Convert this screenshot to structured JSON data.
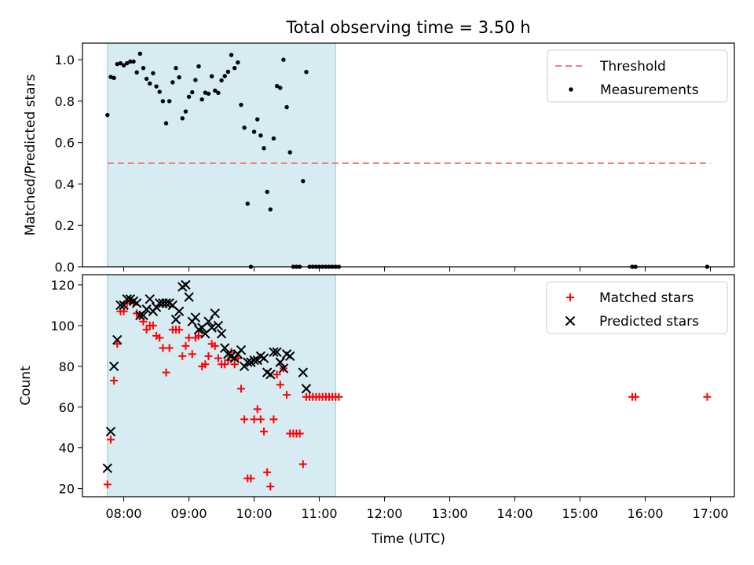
{
  "chart_data": {
    "title": "Total observing time = 3.50 h",
    "shaded_span": [
      "07:45",
      "11:15"
    ],
    "xlabel": "Time (UTC)",
    "xlim": [
      "07:22",
      "17:22"
    ],
    "x_ticks": [
      "08:00",
      "09:00",
      "10:00",
      "11:00",
      "12:00",
      "13:00",
      "14:00",
      "15:00",
      "16:00",
      "17:00"
    ],
    "panels": [
      {
        "type": "scatter",
        "ylabel": "Matched/Predicted stars",
        "ylim": [
          0,
          1.08
        ],
        "y_ticks": [
          0.0,
          0.2,
          0.4,
          0.6,
          0.8,
          1.0
        ],
        "legend": "top-right",
        "series": [
          {
            "name": "Threshold",
            "kind": "hline",
            "color": "#f08080",
            "x": [
              "07:45",
              "17:00"
            ],
            "y": 0.5
          },
          {
            "name": "Measurements",
            "kind": "dot",
            "color": "#000000",
            "points": [
              [
                "07:45",
                0.733
              ],
              [
                "07:48",
                0.917
              ],
              [
                "07:51",
                0.912
              ],
              [
                "07:54",
                0.979
              ],
              [
                "07:57",
                0.983
              ],
              [
                "08:00",
                0.973
              ],
              [
                "08:03",
                0.983
              ],
              [
                "08:06",
                0.991
              ],
              [
                "08:09",
                0.991
              ],
              [
                "08:12",
                0.939
              ],
              [
                "08:15",
                1.029
              ],
              [
                "08:18",
                0.96
              ],
              [
                "08:21",
                0.908
              ],
              [
                "08:24",
                0.885
              ],
              [
                "08:27",
                0.935
              ],
              [
                "08:30",
                0.871
              ],
              [
                "08:33",
                0.845
              ],
              [
                "08:36",
                0.8
              ],
              [
                "08:39",
                0.693
              ],
              [
                "08:42",
                0.8
              ],
              [
                "08:45",
                0.891
              ],
              [
                "08:48",
                0.96
              ],
              [
                "08:51",
                0.915
              ],
              [
                "08:54",
                0.717
              ],
              [
                "08:57",
                0.75
              ],
              [
                "09:00",
                0.821
              ],
              [
                "09:03",
                0.843
              ],
              [
                "09:06",
                0.902
              ],
              [
                "09:09",
                0.968
              ],
              [
                "09:12",
                0.808
              ],
              [
                "09:15",
                0.841
              ],
              [
                "09:18",
                0.836
              ],
              [
                "09:21",
                0.92
              ],
              [
                "09:24",
                0.851
              ],
              [
                "09:27",
                0.84
              ],
              [
                "09:30",
                0.9
              ],
              [
                "09:33",
                0.921
              ],
              [
                "09:36",
                0.942
              ],
              [
                "09:39",
                1.023
              ],
              [
                "09:42",
                0.96
              ],
              [
                "09:45",
                0.987
              ],
              [
                "09:48",
                0.782
              ],
              [
                "09:51",
                0.672
              ],
              [
                "09:54",
                0.305
              ],
              [
                "09:57",
                0.0
              ],
              [
                "10:00",
                0.652
              ],
              [
                "10:03",
                0.712
              ],
              [
                "10:06",
                0.634
              ],
              [
                "10:09",
                0.573
              ],
              [
                "10:12",
                0.362
              ],
              [
                "10:15",
                0.277
              ],
              [
                "10:18",
                0.62
              ],
              [
                "10:21",
                0.873
              ],
              [
                "10:24",
                0.864
              ],
              [
                "10:27",
                1.0
              ],
              [
                "10:30",
                0.771
              ],
              [
                "10:33",
                0.553
              ],
              [
                "10:36",
                0.0
              ],
              [
                "10:39",
                0.0
              ],
              [
                "10:42",
                0.0
              ],
              [
                "10:45",
                0.414
              ],
              [
                "10:48",
                0.941
              ],
              [
                "10:51",
                0.0
              ],
              [
                "10:54",
                0.0
              ],
              [
                "10:57",
                0.0
              ],
              [
                "11:00",
                0.0
              ],
              [
                "11:03",
                0.0
              ],
              [
                "11:06",
                0.0
              ],
              [
                "11:09",
                0.0
              ],
              [
                "11:12",
                0.0
              ],
              [
                "11:15",
                0.0
              ],
              [
                "11:18",
                0.0
              ],
              [
                "15:48",
                0.0
              ],
              [
                "15:51",
                0.0
              ],
              [
                "16:57",
                0.0
              ]
            ]
          }
        ]
      },
      {
        "type": "scatter",
        "ylabel": "Count",
        "ylim": [
          16,
          125
        ],
        "y_ticks": [
          20,
          40,
          60,
          80,
          100,
          120
        ],
        "legend": "top-right",
        "series": [
          {
            "name": "Matched stars",
            "kind": "plus",
            "color": "#ff0000",
            "points": [
              [
                "07:45",
                22
              ],
              [
                "07:48",
                44
              ],
              [
                "07:51",
                73
              ],
              [
                "07:54",
                91
              ],
              [
                "07:57",
                107
              ],
              [
                "08:00",
                107
              ],
              [
                "08:03",
                111
              ],
              [
                "08:06",
                112
              ],
              [
                "08:09",
                111
              ],
              [
                "08:12",
                106
              ],
              [
                "08:15",
                105
              ],
              [
                "08:18",
                102
              ],
              [
                "08:21",
                98
              ],
              [
                "08:24",
                100
              ],
              [
                "08:27",
                100
              ],
              [
                "08:30",
                95
              ],
              [
                "08:33",
                94
              ],
              [
                "08:36",
                89
              ],
              [
                "08:39",
                77
              ],
              [
                "08:42",
                89
              ],
              [
                "08:45",
                98
              ],
              [
                "08:48",
                98
              ],
              [
                "08:51",
                98
              ],
              [
                "08:54",
                85
              ],
              [
                "08:57",
                90
              ],
              [
                "09:00",
                94
              ],
              [
                "09:03",
                86
              ],
              [
                "09:06",
                94
              ],
              [
                "09:09",
                95
              ],
              [
                "09:12",
                80
              ],
              [
                "09:15",
                81
              ],
              [
                "09:18",
                85
              ],
              [
                "09:21",
                91
              ],
              [
                "09:24",
                90
              ],
              [
                "09:27",
                84
              ],
              [
                "09:30",
                81
              ],
              [
                "09:33",
                81
              ],
              [
                "09:36",
                83
              ],
              [
                "09:39",
                87
              ],
              [
                "09:42",
                81
              ],
              [
                "09:45",
                84
              ],
              [
                "09:48",
                69
              ],
              [
                "09:51",
                54
              ],
              [
                "09:54",
                25
              ],
              [
                "09:57",
                25
              ],
              [
                "10:00",
                54
              ],
              [
                "10:03",
                59
              ],
              [
                "10:06",
                54
              ],
              [
                "10:09",
                48
              ],
              [
                "10:12",
                28
              ],
              [
                "10:15",
                21
              ],
              [
                "10:18",
                54
              ],
              [
                "10:21",
                76
              ],
              [
                "10:24",
                71
              ],
              [
                "10:27",
                79
              ],
              [
                "10:30",
                66
              ],
              [
                "10:33",
                47
              ],
              [
                "10:36",
                47
              ],
              [
                "10:39",
                47
              ],
              [
                "10:42",
                47
              ],
              [
                "10:45",
                32
              ],
              [
                "10:48",
                65
              ],
              [
                "10:51",
                65
              ],
              [
                "10:54",
                65
              ],
              [
                "10:57",
                65
              ],
              [
                "11:00",
                65
              ],
              [
                "11:03",
                65
              ],
              [
                "11:06",
                65
              ],
              [
                "11:09",
                65
              ],
              [
                "11:12",
                65
              ],
              [
                "11:15",
                65
              ],
              [
                "11:18",
                65
              ],
              [
                "15:48",
                65
              ],
              [
                "15:51",
                65
              ],
              [
                "16:57",
                65
              ]
            ]
          },
          {
            "name": "Predicted stars",
            "kind": "x",
            "color": "#000000",
            "points": [
              [
                "07:45",
                30
              ],
              [
                "07:48",
                48
              ],
              [
                "07:51",
                80
              ],
              [
                "07:54",
                93
              ],
              [
                "07:57",
                110
              ],
              [
                "08:00",
                110
              ],
              [
                "08:03",
                113
              ],
              [
                "08:06",
                113
              ],
              [
                "08:09",
                112
              ],
              [
                "08:12",
                111
              ],
              [
                "08:15",
                105
              ],
              [
                "08:18",
                105
              ],
              [
                "08:21",
                108
              ],
              [
                "08:24",
                113
              ],
              [
                "08:27",
                107
              ],
              [
                "08:30",
                109
              ],
              [
                "08:33",
                111
              ],
              [
                "08:36",
                111
              ],
              [
                "08:39",
                111
              ],
              [
                "08:42",
                111
              ],
              [
                "08:45",
                110
              ],
              [
                "08:48",
                103
              ],
              [
                "08:51",
                107
              ],
              [
                "08:54",
                119
              ],
              [
                "08:57",
                120
              ],
              [
                "09:00",
                114
              ],
              [
                "09:03",
                102
              ],
              [
                "09:06",
                104
              ],
              [
                "09:09",
                98
              ],
              [
                "09:12",
                99
              ],
              [
                "09:15",
                96
              ],
              [
                "09:18",
                102
              ],
              [
                "09:21",
                99
              ],
              [
                "09:24",
                106
              ],
              [
                "09:27",
                100
              ],
              [
                "09:30",
                96
              ],
              [
                "09:33",
                89
              ],
              [
                "09:36",
                86
              ],
              [
                "09:39",
                85
              ],
              [
                "09:42",
                84
              ],
              [
                "09:45",
                86
              ],
              [
                "09:48",
                88
              ],
              [
                "09:51",
                80
              ],
              [
                "09:54",
                82
              ],
              [
                "09:57",
                82
              ],
              [
                "10:00",
                83
              ],
              [
                "10:03",
                83
              ],
              [
                "10:06",
                85
              ],
              [
                "10:09",
                84
              ],
              [
                "10:12",
                77
              ],
              [
                "10:15",
                76
              ],
              [
                "10:18",
                87
              ],
              [
                "10:21",
                87
              ],
              [
                "10:24",
                82
              ],
              [
                "10:27",
                79
              ],
              [
                "10:30",
                86
              ],
              [
                "10:33",
                85
              ],
              [
                "10:45",
                77
              ],
              [
                "10:48",
                69
              ]
            ]
          }
        ]
      }
    ]
  }
}
